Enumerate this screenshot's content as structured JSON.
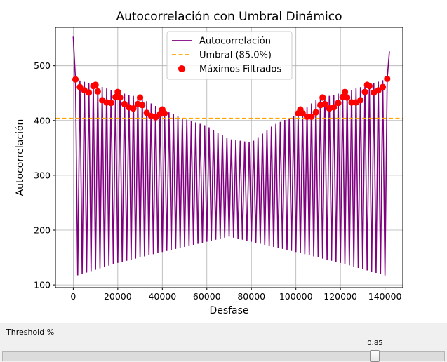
{
  "chart_data": {
    "type": "line",
    "title": "Autocorrelación con Umbral Dinámico",
    "xlabel": "Desfase",
    "ylabel": "Autocorrelación",
    "xlim": [
      -8000,
      148000
    ],
    "ylim": [
      95,
      570
    ],
    "xticks": [
      0,
      20000,
      40000,
      60000,
      80000,
      100000,
      120000,
      140000
    ],
    "yticks": [
      100,
      200,
      300,
      400,
      500
    ],
    "grid": true,
    "legend_position": "top-center",
    "legend": [
      {
        "label": "Autocorrelación",
        "kind": "line",
        "color": "#800080"
      },
      {
        "label": "Umbral (85.0%)",
        "kind": "dashed-line",
        "color": "#ffa500"
      },
      {
        "label": "Máximos Filtrados",
        "kind": "marker",
        "color": "#ff0000"
      }
    ],
    "series": [
      {
        "name": "Autocorrelación",
        "color": "#800080",
        "period": 2000,
        "x_end": 142000,
        "start_value": 553,
        "end_value": 526,
        "peak_envelope": [
          [
            1000,
            475
          ],
          [
            10000,
            465
          ],
          [
            20000,
            452
          ],
          [
            30000,
            442
          ],
          [
            40000,
            420
          ],
          [
            50000,
            403
          ],
          [
            60000,
            390
          ],
          [
            70000,
            366
          ],
          [
            80000,
            360
          ],
          [
            90000,
            392
          ],
          [
            100000,
            410
          ],
          [
            110000,
            440
          ],
          [
            120000,
            450
          ],
          [
            130000,
            462
          ],
          [
            141000,
            476
          ]
        ],
        "trough_envelope": [
          [
            0,
            115
          ],
          [
            20000,
            140
          ],
          [
            40000,
            160
          ],
          [
            70000,
            188
          ],
          [
            100000,
            160
          ],
          [
            120000,
            140
          ],
          [
            142000,
            115
          ]
        ]
      },
      {
        "name": "Umbral (85.0%)",
        "color": "#ffa500",
        "y": 404
      }
    ],
    "peaks": {
      "name": "Máximos Filtrados",
      "color": "#ff0000",
      "points": [
        [
          1000,
          475
        ],
        [
          3000,
          461
        ],
        [
          5000,
          455
        ],
        [
          7000,
          451
        ],
        [
          9000,
          463
        ],
        [
          10000,
          465
        ],
        [
          11000,
          453
        ],
        [
          13000,
          437
        ],
        [
          15000,
          433
        ],
        [
          17000,
          432
        ],
        [
          19000,
          443
        ],
        [
          20000,
          452
        ],
        [
          21000,
          442
        ],
        [
          23000,
          430
        ],
        [
          25000,
          424
        ],
        [
          27000,
          422
        ],
        [
          29000,
          430
        ],
        [
          30000,
          442
        ],
        [
          31000,
          428
        ],
        [
          33000,
          414
        ],
        [
          35000,
          408
        ],
        [
          37000,
          406
        ],
        [
          39000,
          412
        ],
        [
          40000,
          420
        ],
        [
          41000,
          413
        ],
        [
          101000,
          413
        ],
        [
          102000,
          420
        ],
        [
          103000,
          413
        ],
        [
          105000,
          407
        ],
        [
          107000,
          407
        ],
        [
          109000,
          415
        ],
        [
          111000,
          428
        ],
        [
          112000,
          442
        ],
        [
          113000,
          430
        ],
        [
          115000,
          422
        ],
        [
          117000,
          424
        ],
        [
          119000,
          432
        ],
        [
          121000,
          443
        ],
        [
          122000,
          452
        ],
        [
          123000,
          442
        ],
        [
          125000,
          433
        ],
        [
          127000,
          433
        ],
        [
          129000,
          437
        ],
        [
          131000,
          452
        ],
        [
          132000,
          465
        ],
        [
          133000,
          463
        ],
        [
          135000,
          451
        ],
        [
          137000,
          455
        ],
        [
          139000,
          461
        ],
        [
          141000,
          476
        ]
      ]
    }
  },
  "controls": {
    "threshold_label": "Threshold %",
    "slider": {
      "min": 0,
      "max": 1,
      "value": 0.85,
      "value_text": "0.85"
    }
  }
}
